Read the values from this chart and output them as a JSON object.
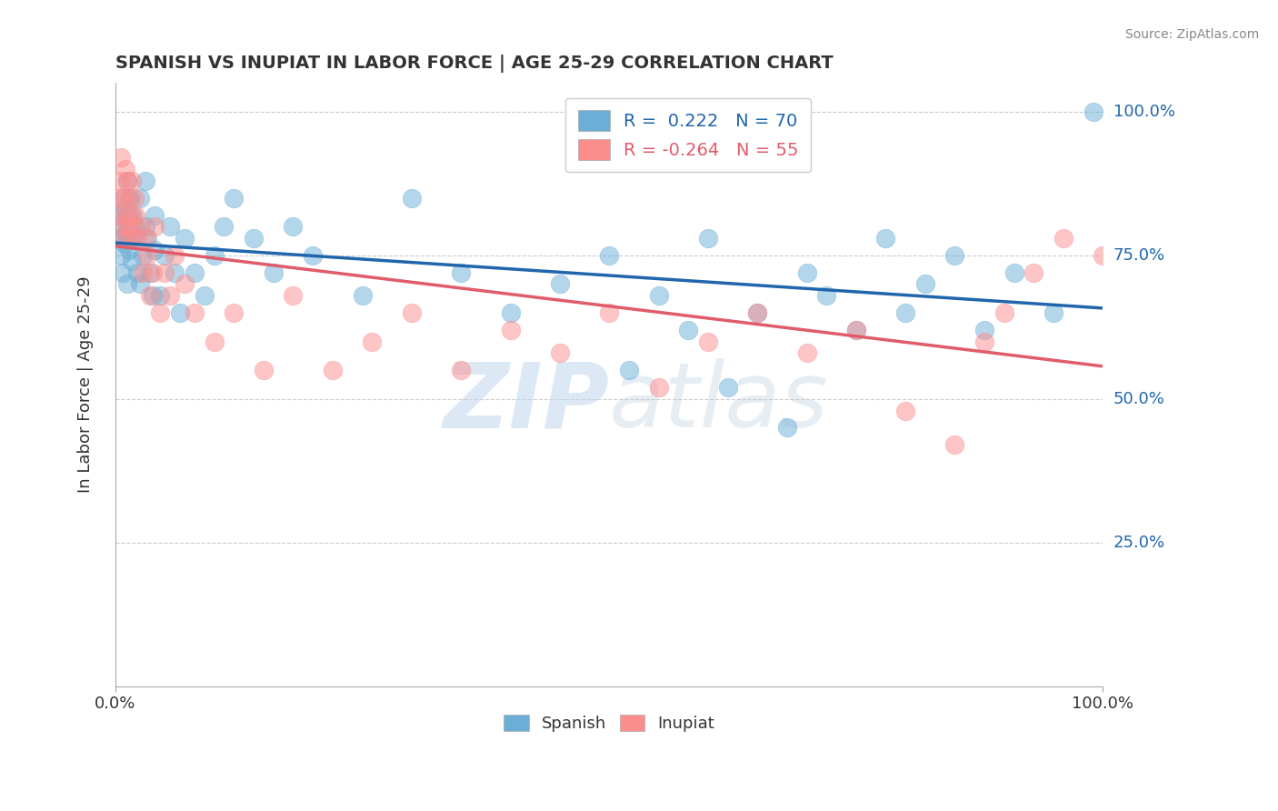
{
  "title": "SPANISH VS INUPIAT IN LABOR FORCE | AGE 25-29 CORRELATION CHART",
  "source_text": "Source: ZipAtlas.com",
  "ylabel": "In Labor Force | Age 25-29",
  "xlim": [
    0.0,
    1.0
  ],
  "ylim": [
    0.0,
    1.05
  ],
  "ytick_labels": [
    "25.0%",
    "50.0%",
    "75.0%",
    "100.0%"
  ],
  "ytick_values": [
    0.25,
    0.5,
    0.75,
    1.0
  ],
  "r1": 0.222,
  "n1": 70,
  "r2": -0.264,
  "n2": 55,
  "color_spanish": "#6baed6",
  "color_inupiat": "#fc8d8d",
  "line_color_spanish": "#2166ac",
  "line_color_inupiat": "#e05c6a",
  "watermark_zip": "ZIP",
  "watermark_atlas": "atlas",
  "spanish_x": [
    0.003,
    0.004,
    0.005,
    0.006,
    0.007,
    0.008,
    0.009,
    0.01,
    0.011,
    0.012,
    0.012,
    0.013,
    0.014,
    0.015,
    0.015,
    0.016,
    0.017,
    0.018,
    0.019,
    0.02,
    0.022,
    0.025,
    0.025,
    0.028,
    0.03,
    0.03,
    0.032,
    0.035,
    0.038,
    0.04,
    0.04,
    0.045,
    0.05,
    0.055,
    0.06,
    0.065,
    0.07,
    0.08,
    0.09,
    0.1,
    0.11,
    0.12,
    0.14,
    0.16,
    0.18,
    0.2,
    0.25,
    0.3,
    0.35,
    0.4,
    0.45,
    0.5,
    0.52,
    0.55,
    0.58,
    0.6,
    0.62,
    0.65,
    0.68,
    0.7,
    0.72,
    0.75,
    0.78,
    0.8,
    0.82,
    0.85,
    0.88,
    0.91,
    0.95,
    0.99
  ],
  "spanish_y": [
    0.82,
    0.8,
    0.78,
    0.75,
    0.72,
    0.85,
    0.77,
    0.83,
    0.79,
    0.88,
    0.7,
    0.82,
    0.76,
    0.85,
    0.8,
    0.78,
    0.74,
    0.82,
    0.78,
    0.8,
    0.72,
    0.7,
    0.85,
    0.75,
    0.88,
    0.8,
    0.78,
    0.72,
    0.68,
    0.76,
    0.82,
    0.68,
    0.75,
    0.8,
    0.72,
    0.65,
    0.78,
    0.72,
    0.68,
    0.75,
    0.8,
    0.85,
    0.78,
    0.72,
    0.8,
    0.75,
    0.68,
    0.85,
    0.72,
    0.65,
    0.7,
    0.75,
    0.55,
    0.68,
    0.62,
    0.78,
    0.52,
    0.65,
    0.45,
    0.72,
    0.68,
    0.62,
    0.78,
    0.65,
    0.7,
    0.75,
    0.62,
    0.72,
    0.65,
    1.0
  ],
  "inupiat_x": [
    0.003,
    0.004,
    0.005,
    0.006,
    0.007,
    0.008,
    0.009,
    0.01,
    0.011,
    0.012,
    0.013,
    0.014,
    0.015,
    0.016,
    0.017,
    0.018,
    0.019,
    0.02,
    0.022,
    0.025,
    0.028,
    0.03,
    0.032,
    0.035,
    0.038,
    0.04,
    0.045,
    0.05,
    0.055,
    0.06,
    0.07,
    0.08,
    0.1,
    0.12,
    0.15,
    0.18,
    0.22,
    0.26,
    0.3,
    0.35,
    0.4,
    0.45,
    0.5,
    0.55,
    0.6,
    0.65,
    0.7,
    0.75,
    0.8,
    0.85,
    0.88,
    0.9,
    0.93,
    0.96,
    1.0
  ],
  "inupiat_y": [
    0.82,
    0.85,
    0.88,
    0.92,
    0.8,
    0.85,
    0.78,
    0.9,
    0.82,
    0.88,
    0.8,
    0.85,
    0.78,
    0.82,
    0.88,
    0.8,
    0.85,
    0.82,
    0.78,
    0.8,
    0.72,
    0.78,
    0.75,
    0.68,
    0.72,
    0.8,
    0.65,
    0.72,
    0.68,
    0.75,
    0.7,
    0.65,
    0.6,
    0.65,
    0.55,
    0.68,
    0.55,
    0.6,
    0.65,
    0.55,
    0.62,
    0.58,
    0.65,
    0.52,
    0.6,
    0.65,
    0.58,
    0.62,
    0.48,
    0.42,
    0.6,
    0.65,
    0.72,
    0.78,
    0.75
  ]
}
